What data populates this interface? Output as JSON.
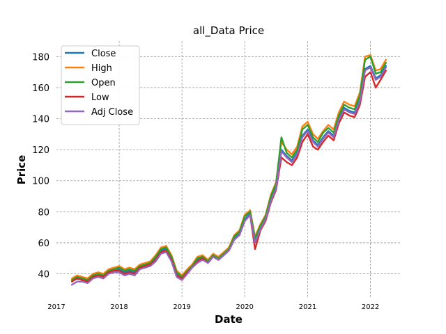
{
  "chart_data": {
    "type": "line",
    "title": "all_Data Price",
    "xlabel": "Date",
    "ylabel": "Price",
    "xlim": [
      "2017-01-01",
      "2022-06-30"
    ],
    "ylim": [
      25,
      190
    ],
    "grid": true,
    "legend_position": "top-left",
    "x_ticks": [
      "2017",
      "2018",
      "2019",
      "2020",
      "2021",
      "2022"
    ],
    "y_ticks": [
      40,
      60,
      80,
      100,
      120,
      140,
      160,
      180
    ],
    "x": [
      "2017-04-01",
      "2017-05-01",
      "2017-06-01",
      "2017-07-01",
      "2017-08-01",
      "2017-09-01",
      "2017-10-01",
      "2017-11-01",
      "2017-12-01",
      "2018-01-01",
      "2018-02-01",
      "2018-03-01",
      "2018-04-01",
      "2018-05-01",
      "2018-06-01",
      "2018-07-01",
      "2018-08-01",
      "2018-09-01",
      "2018-10-01",
      "2018-11-01",
      "2018-12-01",
      "2019-01-01",
      "2019-02-01",
      "2019-03-01",
      "2019-04-01",
      "2019-05-01",
      "2019-06-01",
      "2019-07-01",
      "2019-08-01",
      "2019-09-01",
      "2019-10-01",
      "2019-11-01",
      "2019-12-01",
      "2020-01-01",
      "2020-02-01",
      "2020-03-01",
      "2020-04-01",
      "2020-05-01",
      "2020-06-01",
      "2020-07-01",
      "2020-08-01",
      "2020-09-01",
      "2020-10-01",
      "2020-11-01",
      "2020-12-01",
      "2021-01-01",
      "2021-02-01",
      "2021-03-01",
      "2021-04-01",
      "2021-05-01",
      "2021-06-01",
      "2021-07-01",
      "2021-08-01",
      "2021-09-01",
      "2021-10-01",
      "2021-11-01",
      "2021-12-01",
      "2022-01-01",
      "2022-02-01",
      "2022-03-01",
      "2022-04-01"
    ],
    "series": [
      {
        "name": "Close",
        "color": "#1f77b4",
        "values": [
          36,
          38,
          37,
          36,
          39,
          40,
          39,
          42,
          43,
          43,
          41,
          42,
          41,
          45,
          46,
          47,
          50,
          55,
          56,
          50,
          40,
          38,
          42,
          45,
          49,
          51,
          48,
          52,
          50,
          53,
          56,
          63,
          66,
          75,
          79,
          61,
          70,
          76,
          88,
          96,
          120,
          116,
          113,
          118,
          129,
          133,
          126,
          123,
          128,
          132,
          129,
          140,
          147,
          145,
          144,
          152,
          172,
          174,
          166,
          168,
          174
        ]
      },
      {
        "name": "High",
        "color": "#ff7f0e",
        "values": [
          37,
          39,
          38,
          37,
          40,
          41,
          40,
          43,
          44,
          45,
          43,
          44,
          43,
          46,
          47,
          48,
          52,
          57,
          58,
          52,
          42,
          39,
          43,
          46,
          51,
          52,
          49,
          53,
          51,
          54,
          57,
          65,
          68,
          78,
          81,
          64,
          72,
          78,
          91,
          99,
          125,
          120,
          117,
          122,
          135,
          138,
          130,
          127,
          132,
          136,
          133,
          144,
          151,
          149,
          148,
          157,
          180,
          181,
          171,
          172,
          178
        ]
      },
      {
        "name": "Open",
        "color": "#2ca02c",
        "values": [
          36,
          38,
          37,
          36,
          39,
          40,
          39,
          42,
          43,
          44,
          42,
          43,
          42,
          45,
          46,
          47,
          51,
          56,
          57,
          51,
          41,
          38,
          42,
          45,
          50,
          51,
          48,
          52,
          50,
          53,
          56,
          64,
          67,
          77,
          80,
          63,
          71,
          77,
          90,
          98,
          128,
          118,
          115,
          120,
          133,
          136,
          128,
          125,
          131,
          134,
          131,
          142,
          149,
          147,
          146,
          155,
          178,
          180,
          169,
          170,
          176
        ]
      },
      {
        "name": "Low",
        "color": "#d62728",
        "values": [
          35,
          37,
          36,
          35,
          38,
          39,
          38,
          41,
          42,
          42,
          40,
          41,
          40,
          44,
          45,
          46,
          49,
          54,
          55,
          49,
          39,
          37,
          41,
          44,
          48,
          50,
          47,
          51,
          49,
          52,
          55,
          62,
          65,
          74,
          78,
          56,
          68,
          74,
          86,
          94,
          115,
          112,
          110,
          115,
          125,
          130,
          122,
          120,
          125,
          129,
          126,
          137,
          144,
          142,
          141,
          149,
          167,
          170,
          160,
          165,
          171
        ]
      },
      {
        "name": "Adj Close",
        "color": "#9467bd",
        "values": [
          33,
          35,
          35,
          34,
          37,
          38,
          37,
          40,
          41,
          41,
          39,
          40,
          39,
          43,
          44,
          45,
          48,
          53,
          54,
          48,
          38,
          36,
          40,
          44,
          47,
          49,
          47,
          51,
          49,
          52,
          55,
          62,
          65,
          74,
          78,
          60,
          69,
          75,
          87,
          95,
          119,
          115,
          112,
          117,
          128,
          132,
          125,
          122,
          127,
          131,
          128,
          139,
          146,
          144,
          143,
          151,
          171,
          173,
          165,
          167,
          173
        ]
      }
    ]
  }
}
